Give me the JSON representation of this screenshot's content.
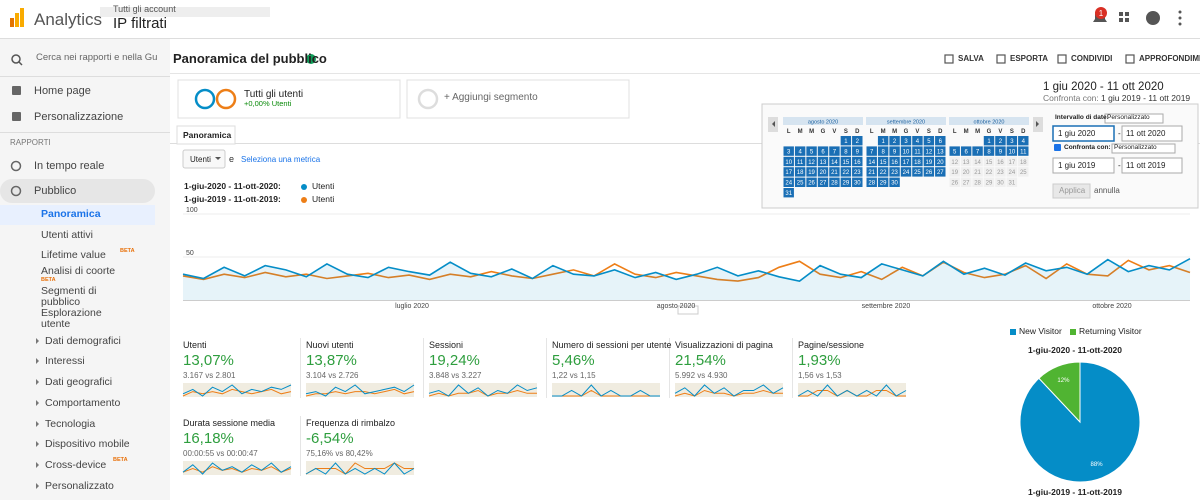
{
  "header": {
    "product": "Analytics",
    "breadcrumb": "Tutti gli account",
    "property": "IP filtrati",
    "notifications": 1
  },
  "sidebar": {
    "search": "Cerca nei rapporti e nella Gu",
    "items": [
      {
        "label": "Home page"
      },
      {
        "label": "Personalizzazione"
      }
    ],
    "section": "RAPPORTI",
    "reports": [
      {
        "label": "In tempo reale"
      },
      {
        "label": "Pubblico",
        "children": [
          {
            "label": "Panoramica",
            "active": true
          },
          {
            "label": "Utenti attivi"
          },
          {
            "label": "Lifetime value",
            "badge": "BETA"
          },
          {
            "label": "Analisi di coorte",
            "badge": "BETA"
          },
          {
            "label": "Segmenti di pubblico"
          },
          {
            "label": "Esplorazione utente"
          },
          {
            "label": "Dati demografici",
            "expandable": true
          },
          {
            "label": "Interessi",
            "expandable": true
          },
          {
            "label": "Dati geografici",
            "expandable": true
          },
          {
            "label": "Comportamento",
            "expandable": true
          },
          {
            "label": "Tecnologia",
            "expandable": true
          },
          {
            "label": "Dispositivo mobile",
            "expandable": true
          },
          {
            "label": "Cross-device",
            "badge": "BETA",
            "expandable": true
          },
          {
            "label": "Personalizzato",
            "expandable": true
          }
        ]
      }
    ]
  },
  "page": {
    "title": "Panoramica del pubblico",
    "actions": [
      "SALVA",
      "ESPORTA",
      "CONDIVIDI",
      "APPROFONDIMENTI"
    ],
    "date_range": "1 giu 2020 - 11 ott 2020",
    "compare_label": "Confronta con:",
    "compare_range": "1 giu 2019 - 11 ott 2019",
    "segment": {
      "name": "Tutti gli utenti",
      "change": "+0,00% Utenti"
    },
    "add_segment": "+ Aggiungi segmento",
    "tab": "Panoramica",
    "metric_select": "Utenti",
    "conjunction": "e",
    "select_metric": "Seleziona una metrica"
  },
  "line_chart": {
    "series": [
      {
        "name": "1-giu-2020 - 11-ott-2020:",
        "metric": "Utenti",
        "color": "#058dc7",
        "values": [
          30,
          25,
          38,
          28,
          40,
          35,
          27,
          42,
          30,
          26,
          38,
          33,
          29,
          44,
          31,
          27,
          36,
          25,
          40,
          30,
          28,
          35,
          26,
          32,
          24,
          30,
          38,
          28,
          34,
          27,
          22,
          40,
          30,
          26,
          42,
          35,
          28,
          45,
          30,
          37,
          29,
          43,
          34,
          38,
          30,
          47,
          33,
          40,
          35,
          48
        ]
      },
      {
        "name": "1-giu-2019 - 11-ott-2019:",
        "metric": "Utenti",
        "color": "#ed7e17",
        "values": [
          28,
          24,
          30,
          26,
          32,
          27,
          30,
          25,
          28,
          31,
          26,
          29,
          24,
          30,
          27,
          33,
          28,
          25,
          30,
          35,
          28,
          42,
          30,
          26,
          32,
          28,
          24,
          22,
          26,
          38,
          45,
          30,
          26,
          33,
          24,
          38,
          28,
          44,
          32,
          26,
          30,
          40,
          25,
          42,
          30,
          28,
          46,
          35,
          40,
          32
        ]
      }
    ],
    "ylim": [
      0,
      100
    ],
    "yticks": [
      50,
      100
    ],
    "xlabels": [
      "luglio 2020",
      "agosto 2020",
      "settembre 2020",
      "ottobre 2020"
    ]
  },
  "metrics": [
    {
      "label": "Utenti",
      "change": "13,07%",
      "compare": "3.167 vs 2.801",
      "spark": [
        [
          5,
          7,
          4,
          8,
          6,
          9,
          5,
          7,
          6,
          8,
          7,
          9
        ],
        [
          4,
          6,
          5,
          6,
          5,
          7,
          6,
          5,
          6,
          7,
          5,
          6
        ]
      ]
    },
    {
      "label": "Nuovi utenti",
      "change": "13,87%",
      "compare": "3.104 vs 2.726",
      "spark": [
        [
          5,
          6,
          4,
          8,
          6,
          9,
          5,
          6,
          7,
          8,
          6,
          9
        ],
        [
          4,
          5,
          5,
          6,
          5,
          6,
          6,
          5,
          6,
          7,
          5,
          6
        ]
      ]
    },
    {
      "label": "Sessioni",
      "change": "19,24%",
      "compare": "3.848 vs 3.227",
      "spark": [
        [
          6,
          7,
          5,
          9,
          6,
          8,
          5,
          7,
          6,
          9,
          7,
          8
        ],
        [
          5,
          6,
          5,
          6,
          6,
          7,
          5,
          6,
          6,
          7,
          6,
          6
        ]
      ]
    },
    {
      "label": "Numero di sessioni per utente",
      "change": "5,46%",
      "compare": "1,22 vs 1,15",
      "spark": [
        [
          5,
          5,
          6,
          5,
          7,
          5,
          6,
          5,
          5,
          6,
          5,
          5
        ],
        [
          5,
          5,
          5,
          5,
          6,
          5,
          5,
          5,
          5,
          5,
          5,
          5
        ]
      ]
    },
    {
      "label": "Visualizzazioni di pagina",
      "change": "21,54%",
      "compare": "5.992 vs 4.930",
      "spark": [
        [
          6,
          8,
          5,
          9,
          6,
          8,
          5,
          7,
          7,
          9,
          6,
          8
        ],
        [
          5,
          6,
          5,
          7,
          6,
          6,
          5,
          6,
          6,
          7,
          6,
          6
        ]
      ]
    },
    {
      "label": "Pagine/sessione",
      "change": "1,93%",
      "compare": "1,56 vs 1,53",
      "spark": [
        [
          5,
          6,
          5,
          7,
          5,
          6,
          5,
          6,
          5,
          7,
          5,
          6
        ],
        [
          5,
          5,
          6,
          6,
          5,
          6,
          5,
          5,
          6,
          6,
          5,
          5
        ]
      ]
    },
    {
      "label": "Durata sessione media",
      "change": "16,18%",
      "compare": "00:00:55 vs 00:00:47",
      "spark": [
        [
          4,
          8,
          3,
          9,
          5,
          7,
          4,
          8,
          5,
          9,
          4,
          7
        ],
        [
          4,
          6,
          4,
          7,
          5,
          6,
          4,
          6,
          5,
          7,
          4,
          6
        ]
      ]
    },
    {
      "label": "Frequenza di rimbalzo",
      "change": "-6,54%",
      "compare": "75,16% vs 80,42%",
      "spark": [
        [
          6,
          7,
          6,
          8,
          6,
          7,
          6,
          7,
          6,
          8,
          6,
          7
        ],
        [
          6,
          7,
          7,
          7,
          6,
          8,
          7,
          7,
          7,
          8,
          7,
          7
        ]
      ]
    }
  ],
  "pie": {
    "names": [
      "New Visitor",
      "Returning Visitor"
    ],
    "colors": [
      "#058dc7",
      "#50b432"
    ],
    "values": [
      88,
      12
    ],
    "value_labels": [
      "88%",
      "12%"
    ],
    "title": "1-giu-2020 - 11-ott-2020",
    "footer": "1-giu-2019 - 11-ott-2019"
  },
  "date_picker": {
    "weekdays": [
      "L",
      "M",
      "M",
      "G",
      "V",
      "S",
      "D"
    ],
    "months": [
      {
        "name": "agosto 2020",
        "selected_through": 31,
        "weeks": [
          [
            null,
            null,
            null,
            null,
            null,
            1,
            2
          ],
          [
            3,
            4,
            5,
            6,
            7,
            8,
            9
          ],
          [
            10,
            11,
            12,
            13,
            14,
            15,
            16
          ],
          [
            17,
            18,
            19,
            20,
            21,
            22,
            23
          ],
          [
            24,
            25,
            26,
            27,
            28,
            29,
            30
          ],
          [
            31
          ]
        ]
      },
      {
        "name": "settembre 2020",
        "selected_through": 30,
        "weeks": [
          [
            null,
            1,
            2,
            3,
            4,
            5,
            6
          ],
          [
            7,
            8,
            9,
            10,
            11,
            12,
            13
          ],
          [
            14,
            15,
            16,
            17,
            18,
            19,
            20
          ],
          [
            21,
            22,
            23,
            24,
            25,
            26,
            27
          ],
          [
            28,
            29,
            30
          ]
        ]
      },
      {
        "name": "ottobre 2020",
        "selected_through": 11,
        "weeks": [
          [
            null,
            null,
            null,
            1,
            2,
            3,
            4
          ],
          [
            5,
            6,
            7,
            8,
            9,
            10,
            11
          ],
          [
            12,
            13,
            14,
            15,
            16,
            17,
            18
          ],
          [
            19,
            20,
            21,
            22,
            23,
            24,
            25
          ],
          [
            26,
            27,
            28,
            29,
            30,
            31
          ]
        ]
      }
    ],
    "range_label": "Intervallo di date:",
    "range_type": "Personalizzato",
    "start": "1 giu 2020",
    "end": "11 ott 2020",
    "compare_label": "Confronta con:",
    "compare_type": "Personalizzato",
    "compare_start": "1 giu 2019",
    "compare_end": "11 ott 2019",
    "apply": "Applica",
    "cancel": "annulla"
  }
}
